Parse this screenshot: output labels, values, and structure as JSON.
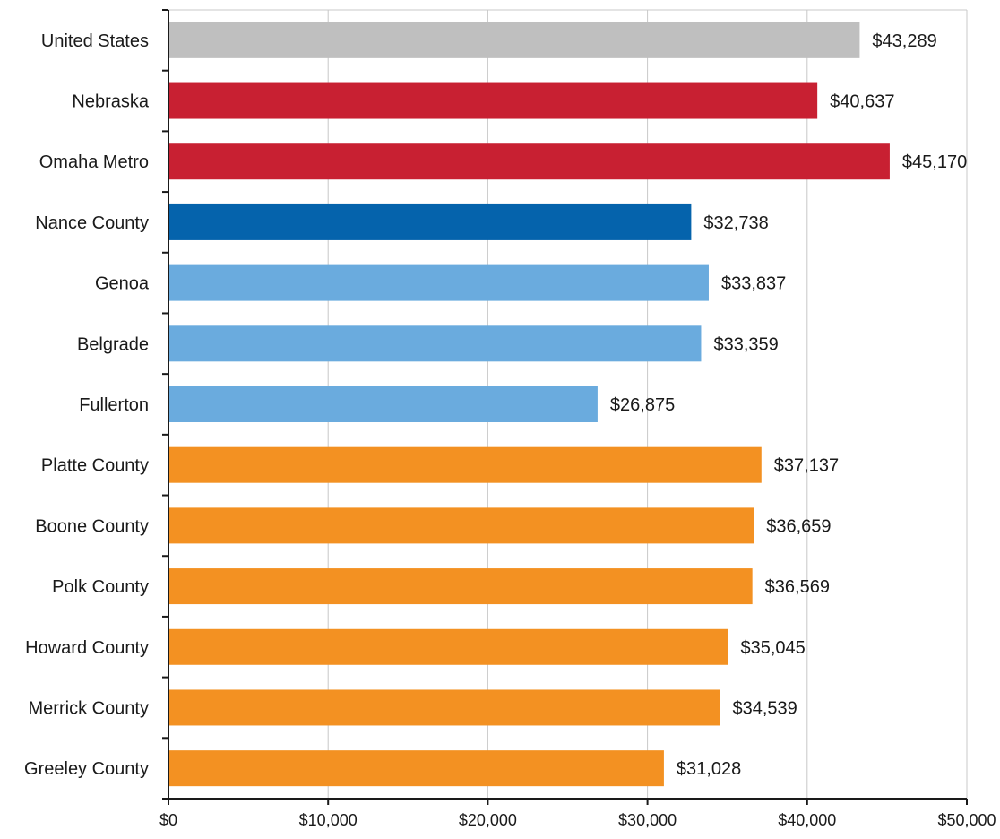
{
  "chart_data": {
    "type": "bar",
    "orientation": "horizontal",
    "categories": [
      "United States",
      "Nebraska",
      "Omaha Metro",
      "Nance County",
      "Genoa",
      "Belgrade",
      "Fullerton",
      "Platte County",
      "Boone County",
      "Polk County",
      "Howard County",
      "Merrick County",
      "Greeley County"
    ],
    "values": [
      43289,
      40637,
      45170,
      32738,
      33837,
      33359,
      26875,
      37137,
      36659,
      36569,
      35045,
      34539,
      31028
    ],
    "value_labels": [
      "$43,289",
      "$40,637",
      "$45,170",
      "$32,738",
      "$33,837",
      "$33,359",
      "$26,875",
      "$37,137",
      "$36,659",
      "$36,569",
      "$35,045",
      "$34,539",
      "$31,028"
    ],
    "bar_colors": [
      "#bfbfbf",
      "#c82032",
      "#c82032",
      "#0563ac",
      "#6aabde",
      "#6aabde",
      "#6aabde",
      "#f39122",
      "#f39122",
      "#f39122",
      "#f39122",
      "#f39122",
      "#f39122"
    ],
    "xlim": [
      0,
      50000
    ],
    "x_ticks": [
      0,
      10000,
      20000,
      30000,
      40000,
      50000
    ],
    "x_tick_labels": [
      "$0",
      "$10,000",
      "$20,000",
      "$30,000",
      "$40,000",
      "$50,000"
    ],
    "title": "",
    "xlabel": "",
    "ylabel": "",
    "grid": "vertical",
    "legend": "none"
  }
}
